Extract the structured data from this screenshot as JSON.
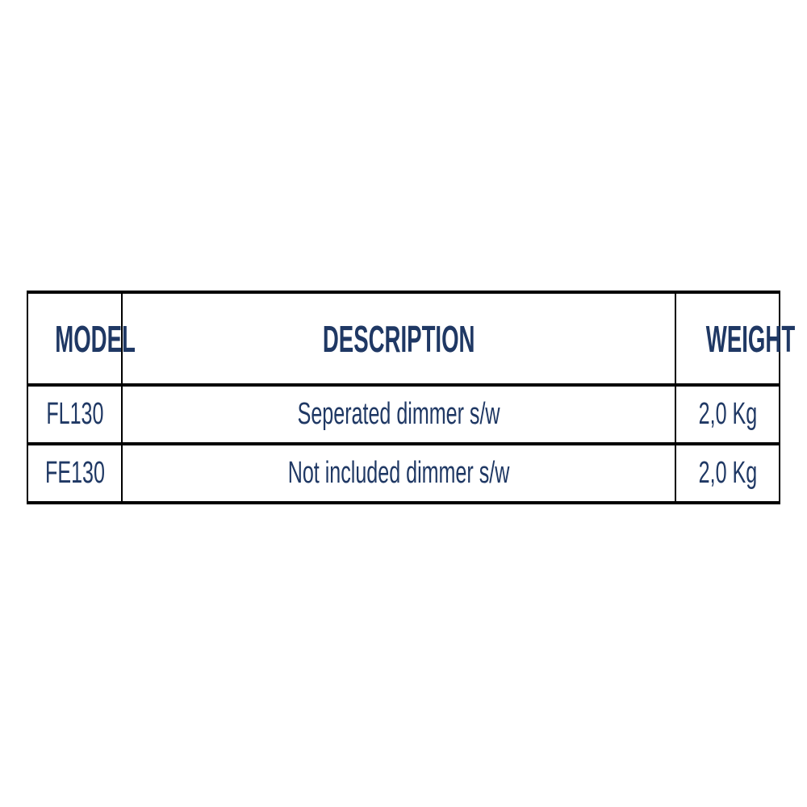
{
  "page": {
    "background": "#ffffff"
  },
  "colors": {
    "text": "#1f3864",
    "border": "#000000"
  },
  "table": {
    "headers": [
      "MODEL",
      "DESCRIPTION",
      "WEIGHT"
    ],
    "rows": [
      {
        "model": "FL130",
        "description": "Seperated dimmer s/w",
        "weight": "2,0 Kg"
      },
      {
        "model": "FE130",
        "description": "Not included dimmer s/w",
        "weight": "2,0 Kg"
      }
    ]
  }
}
